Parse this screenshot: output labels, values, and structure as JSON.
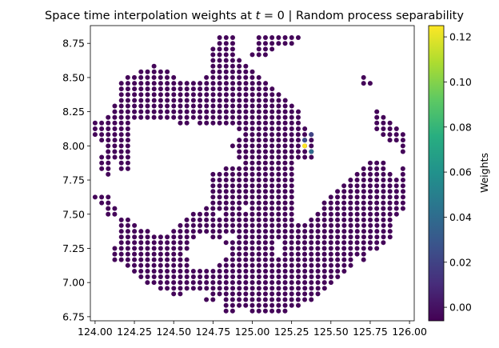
{
  "chart_data": {
    "type": "scatter",
    "title": "Space time interpolation weights at t = 0 | Random process separability",
    "title_parts": {
      "before": "Space time interpolation weights at ",
      "var": "t",
      "after": " = 0 | Random process separability"
    },
    "xlim": [
      123.97,
      126.03
    ],
    "ylim": [
      6.72,
      8.88
    ],
    "x_ticks": [
      124.0,
      124.25,
      124.5,
      124.75,
      125.0,
      125.25,
      125.5,
      125.75,
      126.0
    ],
    "x_tick_labels": [
      "124.00",
      "124.25",
      "124.50",
      "124.75",
      "125.00",
      "125.25",
      "125.50",
      "125.75",
      "126.00"
    ],
    "y_ticks": [
      6.75,
      7.0,
      7.25,
      7.5,
      7.75,
      8.0,
      8.25,
      8.5,
      8.75
    ],
    "y_tick_labels": [
      "6.75",
      "7.00",
      "7.25",
      "7.50",
      "7.75",
      "8.00",
      "8.25",
      "8.50",
      "8.75"
    ],
    "grid": false,
    "colorbar": {
      "label": "Weights",
      "colormap": "viridis",
      "range": [
        -0.006,
        0.125
      ],
      "ticks": [
        0.0,
        0.02,
        0.04,
        0.06,
        0.08,
        0.1,
        0.12
      ],
      "tick_labels": [
        "0.00",
        "0.02",
        "0.04",
        "0.06",
        "0.08",
        "0.10",
        "0.12"
      ]
    },
    "grid_step": 0.0417,
    "default_weight": -0.004,
    "rows": [
      {
        "y": 8.792,
        "ranges": [
          [
            124.792,
            124.875
          ],
          [
            125.042,
            125.292
          ]
        ]
      },
      {
        "y": 8.75,
        "ranges": [
          [
            124.792,
            124.875
          ],
          [
            125.042,
            125.25
          ]
        ]
      },
      {
        "y": 8.708,
        "ranges": [
          [
            124.75,
            124.875
          ],
          [
            125.042,
            125.125
          ]
        ]
      },
      {
        "y": 8.667,
        "ranges": [
          [
            124.75,
            124.875
          ],
          [
            125.0,
            125.083
          ]
        ]
      },
      {
        "y": 8.625,
        "ranges": [
          [
            124.75,
            124.917
          ]
        ]
      },
      {
        "y": 8.583,
        "ranges": [
          [
            124.375,
            124.375
          ],
          [
            124.75,
            124.958
          ]
        ]
      },
      {
        "y": 8.542,
        "ranges": [
          [
            124.292,
            124.458
          ],
          [
            124.75,
            125.0
          ]
        ]
      },
      {
        "y": 8.5,
        "ranges": [
          [
            124.208,
            124.5
          ],
          [
            124.708,
            125.042
          ],
          [
            125.708,
            125.708
          ]
        ]
      },
      {
        "y": 8.458,
        "ranges": [
          [
            124.167,
            125.083
          ],
          [
            125.708,
            125.75
          ]
        ]
      },
      {
        "y": 8.417,
        "ranges": [
          [
            124.167,
            125.125
          ]
        ]
      },
      {
        "y": 8.375,
        "ranges": [
          [
            124.167,
            125.167
          ]
        ]
      },
      {
        "y": 8.333,
        "ranges": [
          [
            124.167,
            125.208
          ]
        ]
      },
      {
        "y": 8.292,
        "ranges": [
          [
            124.125,
            125.25
          ]
        ]
      },
      {
        "y": 8.25,
        "ranges": [
          [
            124.125,
            125.292
          ],
          [
            125.792,
            125.792
          ]
        ]
      },
      {
        "y": 8.208,
        "ranges": [
          [
            124.083,
            125.292
          ],
          [
            125.792,
            125.833
          ]
        ]
      },
      {
        "y": 8.167,
        "ranges": [
          [
            124.0,
            124.208
          ],
          [
            124.542,
            124.583
          ],
          [
            124.667,
            125.292
          ],
          [
            125.792,
            125.875
          ]
        ]
      },
      {
        "y": 8.125,
        "ranges": [
          [
            124.0,
            124.208
          ],
          [
            124.917,
            125.333
          ],
          [
            125.792,
            125.917
          ]
        ]
      },
      {
        "y": 8.083,
        "ranges": [
          [
            124.0,
            124.208
          ],
          [
            124.958,
            125.375
          ],
          [
            125.833,
            125.958
          ]
        ]
      },
      {
        "y": 8.042,
        "ranges": [
          [
            124.042,
            124.208
          ],
          [
            124.917,
            125.375
          ],
          [
            125.875,
            125.958
          ]
        ]
      },
      {
        "y": 8.0,
        "ranges": [
          [
            124.083,
            124.208
          ],
          [
            124.875,
            125.375
          ],
          [
            125.958,
            125.958
          ]
        ]
      },
      {
        "y": 7.958,
        "ranges": [
          [
            124.083,
            124.208
          ],
          [
            124.917,
            125.375
          ],
          [
            125.958,
            125.958
          ]
        ]
      },
      {
        "y": 7.917,
        "ranges": [
          [
            124.042,
            124.208
          ],
          [
            124.917,
            125.375
          ]
        ]
      },
      {
        "y": 7.875,
        "ranges": [
          [
            124.042,
            124.083
          ],
          [
            124.167,
            124.208
          ],
          [
            124.958,
            125.25
          ],
          [
            125.75,
            125.833
          ]
        ]
      },
      {
        "y": 7.833,
        "ranges": [
          [
            124.042,
            124.083
          ],
          [
            124.167,
            124.208
          ],
          [
            124.833,
            125.25
          ],
          [
            125.708,
            125.833
          ],
          [
            125.958,
            125.958
          ]
        ]
      },
      {
        "y": 7.792,
        "ranges": [
          [
            124.083,
            124.083
          ],
          [
            124.75,
            125.25
          ],
          [
            125.667,
            125.875
          ],
          [
            125.958,
            125.958
          ]
        ]
      },
      {
        "y": 7.75,
        "ranges": [
          [
            124.75,
            125.25
          ],
          [
            125.625,
            125.958
          ]
        ]
      },
      {
        "y": 7.708,
        "ranges": [
          [
            124.75,
            125.25
          ],
          [
            125.583,
            125.958
          ]
        ]
      },
      {
        "y": 7.667,
        "ranges": [
          [
            124.75,
            125.25
          ],
          [
            125.542,
            125.958
          ]
        ]
      },
      {
        "y": 7.625,
        "ranges": [
          [
            124.0,
            124.083
          ],
          [
            124.75,
            125.25
          ],
          [
            125.5,
            125.958
          ]
        ]
      },
      {
        "y": 7.583,
        "ranges": [
          [
            124.042,
            124.083
          ],
          [
            124.75,
            125.25
          ],
          [
            125.458,
            125.958
          ]
        ]
      },
      {
        "y": 7.542,
        "ranges": [
          [
            124.083,
            124.125
          ],
          [
            124.708,
            124.917
          ],
          [
            125.0,
            125.25
          ],
          [
            125.458,
            125.958
          ]
        ]
      },
      {
        "y": 7.5,
        "ranges": [
          [
            124.083,
            124.125
          ],
          [
            124.625,
            124.75
          ],
          [
            124.833,
            125.25
          ],
          [
            125.417,
            125.917
          ]
        ]
      },
      {
        "y": 7.458,
        "ranges": [
          [
            124.167,
            124.208
          ],
          [
            124.583,
            125.25
          ],
          [
            125.375,
            125.875
          ]
        ]
      },
      {
        "y": 7.417,
        "ranges": [
          [
            124.167,
            124.25
          ],
          [
            124.542,
            125.875
          ]
        ]
      },
      {
        "y": 7.375,
        "ranges": [
          [
            124.167,
            124.333
          ],
          [
            124.5,
            125.875
          ]
        ]
      },
      {
        "y": 7.333,
        "ranges": [
          [
            124.167,
            124.625
          ],
          [
            124.75,
            124.792
          ],
          [
            124.917,
            125.875
          ]
        ]
      },
      {
        "y": 7.292,
        "ranges": [
          [
            124.167,
            124.583
          ],
          [
            124.833,
            125.125
          ],
          [
            125.208,
            125.833
          ]
        ]
      },
      {
        "y": 7.25,
        "ranges": [
          [
            124.125,
            124.583
          ],
          [
            124.875,
            125.125
          ],
          [
            125.208,
            125.792
          ]
        ]
      },
      {
        "y": 7.208,
        "ranges": [
          [
            124.125,
            124.542
          ],
          [
            124.875,
            125.125
          ],
          [
            125.208,
            125.708
          ]
        ]
      },
      {
        "y": 7.167,
        "ranges": [
          [
            124.125,
            124.583
          ],
          [
            124.833,
            125.125
          ],
          [
            125.167,
            125.625
          ],
          [
            125.708,
            125.708
          ]
        ]
      },
      {
        "y": 7.125,
        "ranges": [
          [
            124.208,
            124.583
          ],
          [
            124.792,
            125.625
          ]
        ]
      },
      {
        "y": 7.083,
        "ranges": [
          [
            124.25,
            125.583
          ]
        ]
      },
      {
        "y": 7.042,
        "ranges": [
          [
            124.292,
            125.542
          ]
        ]
      },
      {
        "y": 7.0,
        "ranges": [
          [
            124.333,
            125.5
          ]
        ]
      },
      {
        "y": 6.958,
        "ranges": [
          [
            124.417,
            125.458
          ]
        ]
      },
      {
        "y": 6.917,
        "ranges": [
          [
            124.5,
            124.542
          ],
          [
            124.75,
            125.417
          ]
        ]
      },
      {
        "y": 6.875,
        "ranges": [
          [
            124.708,
            124.75
          ],
          [
            124.833,
            125.375
          ]
        ]
      },
      {
        "y": 6.833,
        "ranges": [
          [
            124.833,
            125.0
          ],
          [
            125.042,
            125.292
          ]
        ]
      },
      {
        "y": 6.792,
        "ranges": [
          [
            124.833,
            124.875
          ],
          [
            125.0,
            125.083
          ],
          [
            125.125,
            125.208
          ]
        ]
      }
    ],
    "weighted_points": [
      {
        "x": 125.333,
        "y": 8.042,
        "w": 0.025
      },
      {
        "x": 125.375,
        "y": 8.083,
        "w": 0.02
      },
      {
        "x": 125.333,
        "y": 8.0,
        "w": 0.125
      },
      {
        "x": 125.375,
        "y": 7.958,
        "w": 0.04
      }
    ]
  }
}
